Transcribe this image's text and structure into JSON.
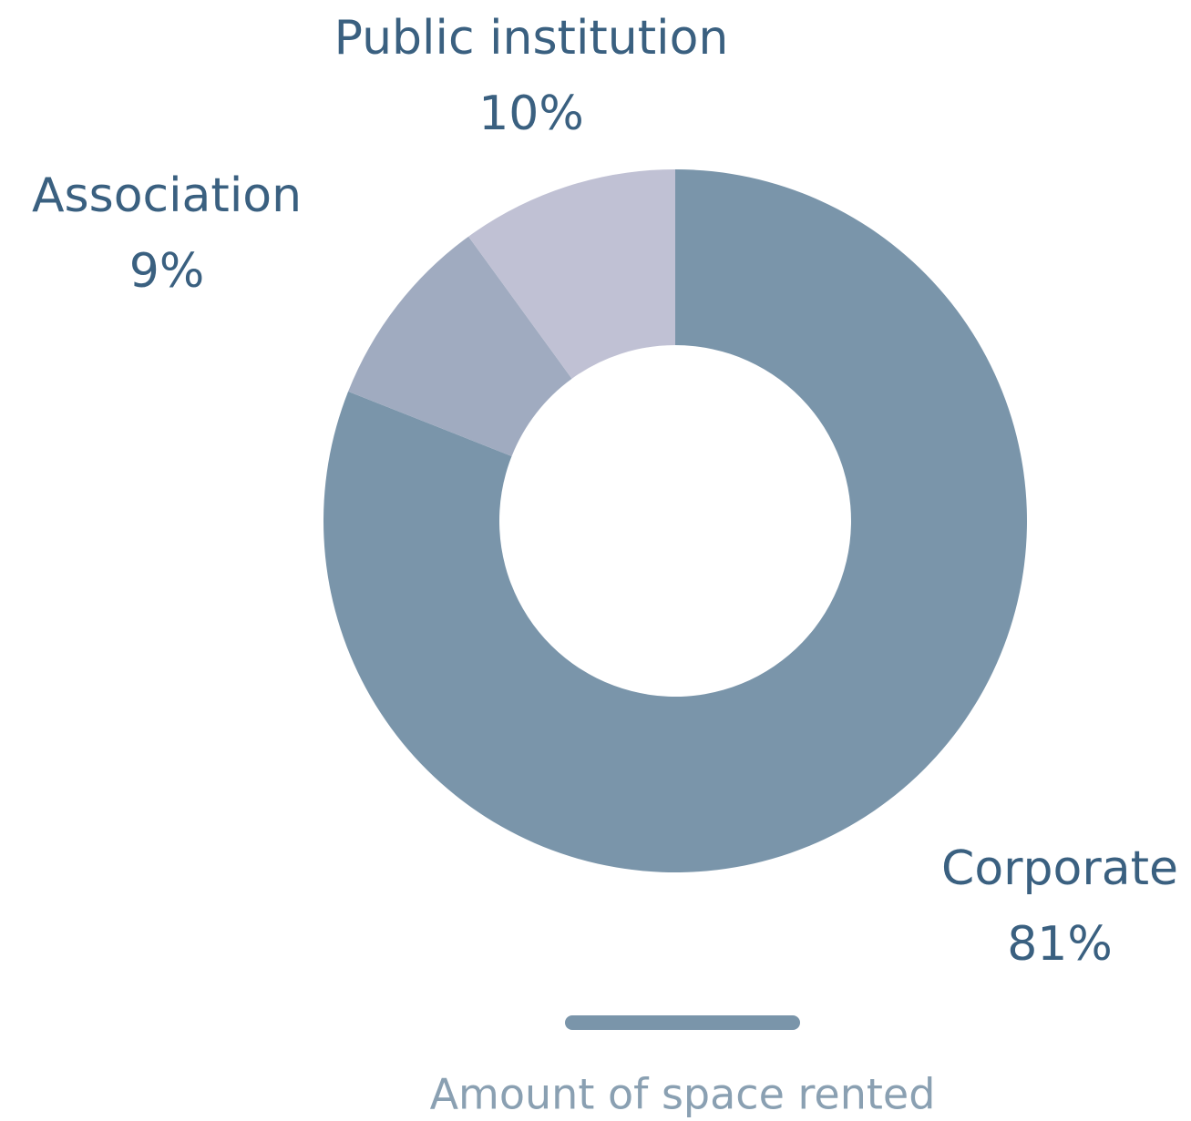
{
  "chart_data": {
    "type": "donut",
    "categories": [
      "Corporate",
      "Association",
      "Public institution"
    ],
    "values": [
      81,
      9,
      10
    ],
    "value_labels": [
      "81%",
      "9%",
      "10%"
    ],
    "colors": [
      "#7a95aa",
      "#a0abc0",
      "#c0c1d4"
    ],
    "legend": {
      "label": "Amount of space rented",
      "color": "#7a95aa"
    }
  }
}
